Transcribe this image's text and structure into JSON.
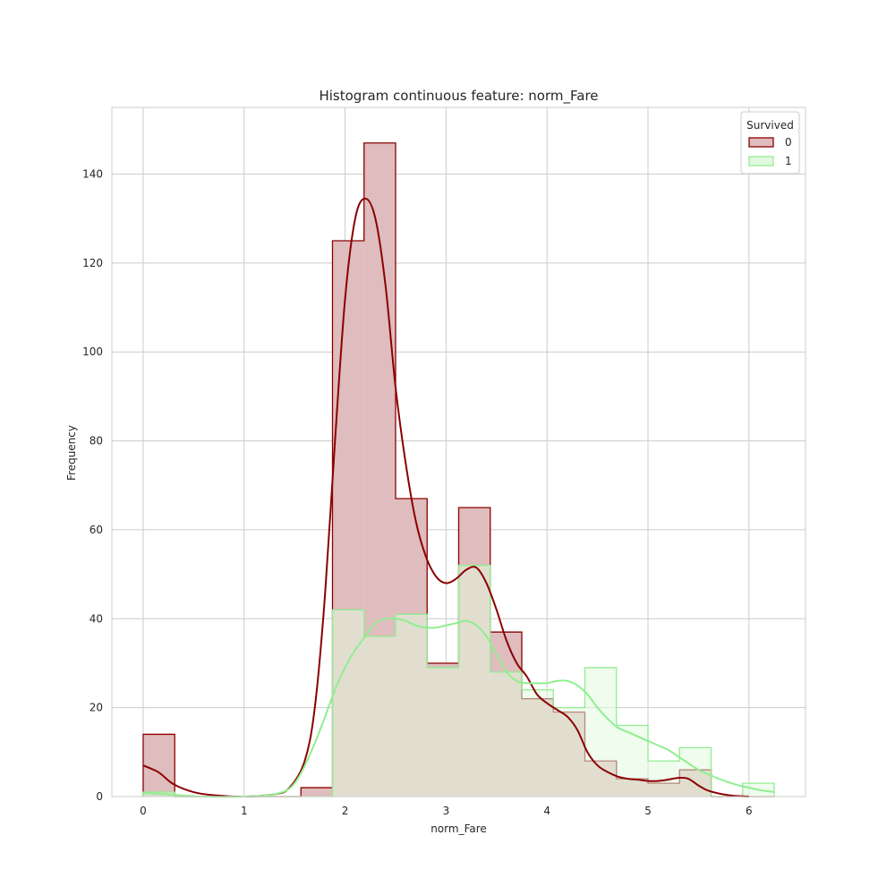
{
  "chart_data": {
    "type": "histogram",
    "title": "Histogram continuous feature: norm_Fare",
    "xlabel": "norm_Fare",
    "ylabel": "Frequency",
    "xlim": [
      -0.31,
      6.56
    ],
    "ylim": [
      0,
      155
    ],
    "xticks": [
      0,
      1,
      2,
      3,
      4,
      5,
      6
    ],
    "yticks": [
      0,
      20,
      40,
      60,
      80,
      100,
      120,
      140
    ],
    "grid": true,
    "legend": {
      "title": "Survived",
      "position": "top-right"
    },
    "bin_edges": [
      0,
      0.3125,
      0.625,
      0.9375,
      1.25,
      1.5625,
      1.875,
      2.1875,
      2.5,
      2.8125,
      3.125,
      3.4375,
      3.75,
      4.0625,
      4.375,
      4.6875,
      5.0,
      5.3125,
      5.625,
      5.9375,
      6.25
    ],
    "series": [
      {
        "name": "0",
        "color": "#8b0000",
        "fill": "#dfbcbd",
        "counts": [
          14,
          0,
          0,
          0,
          0,
          2,
          125,
          147,
          67,
          30,
          65,
          37,
          22,
          19,
          8,
          4,
          3,
          6,
          0,
          0
        ],
        "kde": [
          [
            0,
            7
          ],
          [
            0.15,
            5.5
          ],
          [
            0.3,
            2.8
          ],
          [
            0.5,
            1
          ],
          [
            0.7,
            0.3
          ],
          [
            1.0,
            0
          ],
          [
            1.3,
            0.5
          ],
          [
            1.45,
            2
          ],
          [
            1.6,
            8
          ],
          [
            1.7,
            20
          ],
          [
            1.8,
            45
          ],
          [
            1.9,
            80
          ],
          [
            2.0,
            112
          ],
          [
            2.1,
            130
          ],
          [
            2.2,
            134.5
          ],
          [
            2.3,
            130
          ],
          [
            2.4,
            115
          ],
          [
            2.5,
            92
          ],
          [
            2.6,
            75
          ],
          [
            2.7,
            62
          ],
          [
            2.8,
            54
          ],
          [
            2.9,
            49.5
          ],
          [
            3.0,
            48
          ],
          [
            3.1,
            49
          ],
          [
            3.2,
            51
          ],
          [
            3.3,
            51.5
          ],
          [
            3.4,
            48
          ],
          [
            3.5,
            42
          ],
          [
            3.6,
            35
          ],
          [
            3.7,
            30
          ],
          [
            3.8,
            27
          ],
          [
            3.9,
            23
          ],
          [
            4.0,
            21
          ],
          [
            4.1,
            19.5
          ],
          [
            4.2,
            18
          ],
          [
            4.3,
            15
          ],
          [
            4.4,
            10
          ],
          [
            4.5,
            7
          ],
          [
            4.6,
            5.5
          ],
          [
            4.7,
            4.5
          ],
          [
            4.8,
            4
          ],
          [
            4.9,
            3.8
          ],
          [
            5.0,
            3.5
          ],
          [
            5.1,
            3.5
          ],
          [
            5.2,
            3.8
          ],
          [
            5.3,
            4.2
          ],
          [
            5.4,
            4
          ],
          [
            5.5,
            2.5
          ],
          [
            5.6,
            1.3
          ],
          [
            5.8,
            0.3
          ],
          [
            6.0,
            0
          ]
        ]
      },
      {
        "name": "1",
        "color": "#90ee90",
        "fill": "#e1f9e0",
        "counts": [
          1,
          0,
          0,
          0,
          0,
          0,
          42,
          36,
          41,
          29,
          52,
          28,
          24,
          20,
          29,
          16,
          8,
          11,
          0,
          3
        ],
        "kde": [
          [
            0,
            0.8
          ],
          [
            0.3,
            0.4
          ],
          [
            0.6,
            0
          ],
          [
            1.0,
            0
          ],
          [
            1.3,
            0.5
          ],
          [
            1.5,
            3
          ],
          [
            1.7,
            12
          ],
          [
            1.9,
            24
          ],
          [
            2.0,
            29
          ],
          [
            2.1,
            33
          ],
          [
            2.2,
            36
          ],
          [
            2.3,
            39
          ],
          [
            2.4,
            40
          ],
          [
            2.5,
            40
          ],
          [
            2.6,
            39.5
          ],
          [
            2.7,
            38.5
          ],
          [
            2.8,
            38
          ],
          [
            2.9,
            38
          ],
          [
            3.0,
            38.5
          ],
          [
            3.1,
            39
          ],
          [
            3.2,
            39.5
          ],
          [
            3.3,
            38.5
          ],
          [
            3.4,
            36
          ],
          [
            3.5,
            32
          ],
          [
            3.6,
            28
          ],
          [
            3.7,
            26
          ],
          [
            3.8,
            25.5
          ],
          [
            3.9,
            25.5
          ],
          [
            4.0,
            25.5
          ],
          [
            4.1,
            26
          ],
          [
            4.2,
            26
          ],
          [
            4.3,
            25
          ],
          [
            4.4,
            23
          ],
          [
            4.5,
            20
          ],
          [
            4.6,
            17.5
          ],
          [
            4.7,
            15.5
          ],
          [
            4.8,
            14.5
          ],
          [
            4.9,
            13.5
          ],
          [
            5.0,
            12.5
          ],
          [
            5.1,
            11.5
          ],
          [
            5.2,
            10.5
          ],
          [
            5.3,
            9
          ],
          [
            5.4,
            7.5
          ],
          [
            5.5,
            6
          ],
          [
            5.6,
            5
          ],
          [
            5.7,
            4
          ],
          [
            5.8,
            3.2
          ],
          [
            5.9,
            2.5
          ],
          [
            6.0,
            2
          ],
          [
            6.1,
            1.5
          ],
          [
            6.25,
            1
          ]
        ]
      }
    ]
  }
}
